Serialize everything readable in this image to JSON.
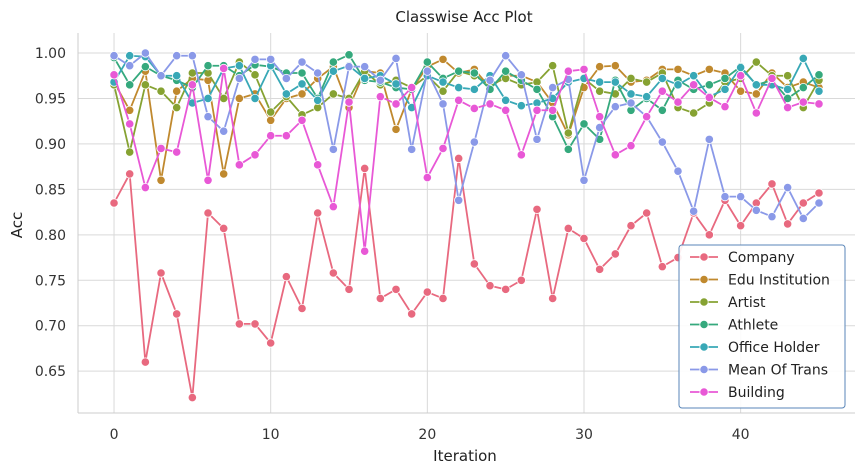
{
  "chart_data": {
    "type": "line",
    "title": "Classwise Acc Plot",
    "xlabel": "Iteration",
    "ylabel": "Acc",
    "xlim": [
      -2.3,
      47.3
    ],
    "ylim": [
      0.604,
      1.022
    ],
    "xticks": [
      0,
      10,
      20,
      30,
      40
    ],
    "yticks": [
      0.65,
      0.7,
      0.75,
      0.8,
      0.85,
      0.9,
      0.95,
      1.0
    ],
    "ytick_labels": [
      "0.65",
      "0.70",
      "0.75",
      "0.80",
      "0.85",
      "0.90",
      "0.95",
      "1.00"
    ],
    "grid": true,
    "legend_position": "lower-right",
    "x": [
      0,
      1,
      2,
      3,
      4,
      5,
      6,
      7,
      8,
      9,
      10,
      11,
      12,
      13,
      14,
      15,
      16,
      17,
      18,
      19,
      20,
      21,
      22,
      23,
      24,
      25,
      26,
      27,
      28,
      29,
      30,
      31,
      32,
      33,
      34,
      35,
      36,
      37,
      38,
      39,
      40,
      41,
      42,
      43,
      44,
      45
    ],
    "series": [
      {
        "name": "Company",
        "color": "#e8697f",
        "values": [
          0.835,
          0.867,
          0.66,
          0.758,
          0.713,
          0.621,
          0.824,
          0.807,
          0.702,
          0.702,
          0.681,
          0.754,
          0.719,
          0.824,
          0.758,
          0.74,
          0.873,
          0.73,
          0.74,
          0.713,
          0.737,
          0.73,
          0.884,
          0.768,
          0.744,
          0.74,
          0.75,
          0.828,
          0.73,
          0.807,
          0.796,
          0.762,
          0.779,
          0.81,
          0.824,
          0.765,
          0.775,
          0.824,
          0.8,
          0.838,
          0.81,
          0.835,
          0.856,
          0.812,
          0.835,
          0.846
        ]
      },
      {
        "name": "Edu Institution",
        "color": "#c0892e",
        "values": [
          0.968,
          0.937,
          0.98,
          0.86,
          0.958,
          0.972,
          0.97,
          0.867,
          0.95,
          0.955,
          0.926,
          0.95,
          0.955,
          0.972,
          0.985,
          0.94,
          0.98,
          0.978,
          0.916,
          0.96,
          0.985,
          0.993,
          0.978,
          0.982,
          0.962,
          0.975,
          0.975,
          0.968,
          0.945,
          0.91,
          0.962,
          0.985,
          0.986,
          0.968,
          0.97,
          0.982,
          0.982,
          0.975,
          0.982,
          0.978,
          0.958,
          0.955,
          0.978,
          0.962,
          0.968,
          0.962
        ]
      },
      {
        "name": "Artist",
        "color": "#86a232",
        "values": [
          0.965,
          0.891,
          0.965,
          0.958,
          0.94,
          0.978,
          0.978,
          0.95,
          0.99,
          0.976,
          0.935,
          0.952,
          0.932,
          0.94,
          0.955,
          0.95,
          0.98,
          0.965,
          0.97,
          0.962,
          0.975,
          0.958,
          0.98,
          0.975,
          0.965,
          0.972,
          0.965,
          0.968,
          0.986,
          0.912,
          0.972,
          0.958,
          0.955,
          0.972,
          0.968,
          0.978,
          0.94,
          0.934,
          0.945,
          0.968,
          0.972,
          0.99,
          0.975,
          0.975,
          0.94,
          0.97
        ]
      },
      {
        "name": "Athlete",
        "color": "#35a97d",
        "values": [
          0.995,
          0.965,
          0.985,
          0.975,
          0.97,
          0.962,
          0.986,
          0.986,
          0.975,
          0.987,
          0.985,
          0.978,
          0.978,
          0.95,
          0.99,
          0.998,
          0.97,
          0.968,
          0.962,
          0.96,
          0.99,
          0.972,
          0.98,
          0.978,
          0.96,
          0.98,
          0.97,
          0.96,
          0.93,
          0.894,
          0.922,
          0.905,
          0.97,
          0.937,
          0.95,
          0.937,
          0.97,
          0.96,
          0.965,
          0.972,
          0.985,
          0.965,
          0.97,
          0.95,
          0.962,
          0.976
        ]
      },
      {
        "name": "Office Holder",
        "color": "#38a8b6",
        "values": [
          0.968,
          0.997,
          0.996,
          0.975,
          0.975,
          0.945,
          0.95,
          0.983,
          0.986,
          0.95,
          0.986,
          0.955,
          0.966,
          0.948,
          0.98,
          0.986,
          0.972,
          0.975,
          0.966,
          0.94,
          0.975,
          0.968,
          0.962,
          0.96,
          0.975,
          0.948,
          0.942,
          0.945,
          0.95,
          0.968,
          0.972,
          0.968,
          0.968,
          0.955,
          0.952,
          0.972,
          0.965,
          0.975,
          0.952,
          0.96,
          0.984,
          0.965,
          0.965,
          0.96,
          0.994,
          0.958
        ]
      },
      {
        "name": "Mean Of Trans",
        "color": "#8a99e8",
        "values": [
          0.997,
          0.986,
          1.0,
          0.975,
          0.997,
          0.997,
          0.93,
          0.914,
          0.972,
          0.993,
          0.993,
          0.972,
          0.99,
          0.978,
          0.894,
          0.985,
          0.985,
          0.97,
          0.994,
          0.894,
          0.98,
          0.944,
          0.838,
          0.902,
          0.97,
          0.997,
          0.976,
          0.905,
          0.962,
          0.971,
          0.86,
          0.918,
          0.941,
          0.945,
          0.93,
          0.902,
          0.87,
          0.826,
          0.905,
          0.842,
          0.842,
          0.827,
          0.82,
          0.852,
          0.818,
          0.835
        ]
      },
      {
        "name": "Building",
        "color": "#e858d6",
        "values": [
          0.976,
          0.922,
          0.852,
          0.895,
          0.891,
          0.965,
          0.86,
          0.983,
          0.877,
          0.888,
          0.909,
          0.909,
          0.926,
          0.877,
          0.831,
          0.946,
          0.782,
          0.952,
          0.944,
          0.962,
          0.863,
          0.895,
          0.948,
          0.939,
          0.944,
          0.937,
          0.888,
          0.937,
          0.937,
          0.98,
          0.982,
          0.93,
          0.888,
          0.898,
          0.93,
          0.958,
          0.946,
          0.965,
          0.951,
          0.941,
          0.975,
          0.934,
          0.972,
          0.94,
          0.946,
          0.944
        ]
      }
    ]
  }
}
